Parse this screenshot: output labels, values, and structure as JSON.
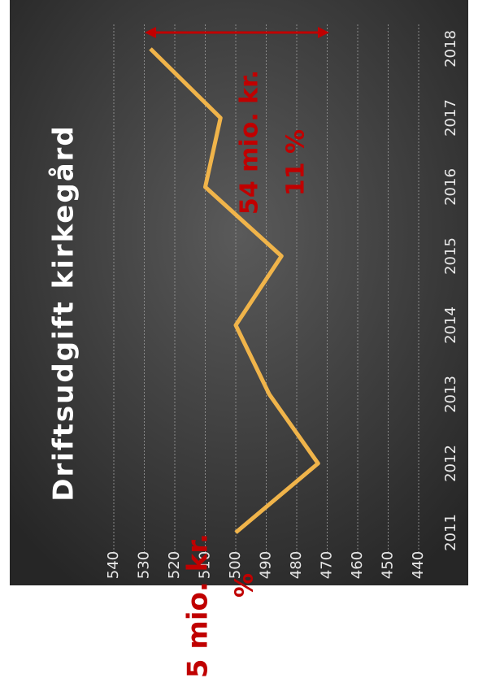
{
  "chart_data": {
    "type": "line",
    "title": "Driftsudgift kirkegård",
    "categories": [
      "2011",
      "2012",
      "2013",
      "2014",
      "2015",
      "2016",
      "2017",
      "2018"
    ],
    "series": [
      {
        "name": "Driftsudgift",
        "color": "#f0b44a",
        "values": [
          500,
          473,
          489,
          500,
          485,
          510,
          505,
          528
        ]
      }
    ],
    "ylim": [
      440,
      540
    ],
    "yticks": [
      440,
      450,
      460,
      470,
      480,
      490,
      500,
      510,
      520,
      530,
      540
    ],
    "grid": true,
    "annotations": [
      "54 mio. kr.",
      "11 %",
      "5 mio. kr.",
      "%"
    ]
  }
}
